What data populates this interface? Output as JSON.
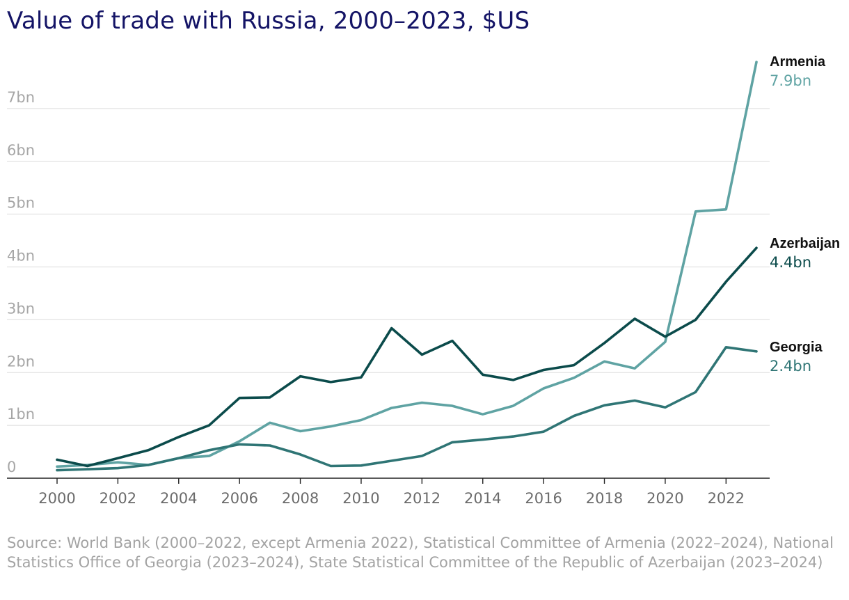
{
  "title": "Value of trade with Russia, 2000–2023, $US",
  "source": "Source: World Bank (2000–2022, except Armenia 2022), Statistical Committee of Armenia (2022–2024), National Statistics Office of Georgia (2023–2024), State Statistical Committee of the Republic of Azerbaijan (2023–2024)",
  "colors": {
    "armenia": "#5fa3a3",
    "azerbaijan": "#0b4b4b",
    "georgia": "#2f7575",
    "grid": "#e2e2e2",
    "tick": "#a6a6a6",
    "axis": "#222222",
    "label": "#111111"
  },
  "chart_data": {
    "type": "line",
    "title": "Value of trade with Russia, 2000–2023, $US",
    "xlabel": "",
    "ylabel": "",
    "x": [
      2000,
      2001,
      2002,
      2003,
      2004,
      2005,
      2006,
      2007,
      2008,
      2009,
      2010,
      2011,
      2012,
      2013,
      2014,
      2015,
      2016,
      2017,
      2018,
      2019,
      2020,
      2021,
      2022,
      2023
    ],
    "xlim": [
      1999.2,
      2023.5
    ],
    "ylim": [
      0,
      8
    ],
    "grid": true,
    "x_ticks": [
      2000,
      2002,
      2004,
      2006,
      2008,
      2010,
      2012,
      2014,
      2016,
      2018,
      2020,
      2022
    ],
    "x_tick_labels": [
      "2000",
      "2002",
      "2004",
      "2006",
      "2008",
      "2010",
      "2012",
      "2014",
      "2016",
      "2018",
      "2020",
      "2022"
    ],
    "y_ticks": [
      0,
      1,
      2,
      3,
      4,
      5,
      6,
      7
    ],
    "y_tick_labels": [
      "0",
      "1bn",
      "2bn",
      "3bn",
      "4bn",
      "5bn",
      "6bn",
      "7bn"
    ],
    "series": [
      {
        "key": "armenia",
        "name": "Armenia",
        "end_label": "7.9bn",
        "values": [
          0.22,
          0.25,
          0.3,
          0.25,
          0.38,
          0.42,
          0.7,
          1.05,
          0.89,
          0.98,
          1.1,
          1.33,
          1.43,
          1.37,
          1.21,
          1.37,
          1.7,
          1.9,
          2.21,
          2.08,
          2.58,
          5.05,
          5.09,
          7.88
        ]
      },
      {
        "key": "azerbaijan",
        "name": "Azerbaijan",
        "end_label": "4.4bn",
        "values": [
          0.35,
          0.23,
          0.38,
          0.53,
          0.78,
          1.0,
          1.52,
          1.53,
          1.93,
          1.82,
          1.91,
          2.84,
          2.34,
          2.6,
          1.96,
          1.86,
          2.05,
          2.14,
          2.56,
          3.02,
          2.68,
          3.0,
          3.72,
          4.36
        ]
      },
      {
        "key": "georgia",
        "name": "Georgia",
        "end_label": "2.4bn",
        "values": [
          0.15,
          0.17,
          0.19,
          0.25,
          0.38,
          0.53,
          0.64,
          0.62,
          0.45,
          0.23,
          0.24,
          0.33,
          0.42,
          0.68,
          0.73,
          0.79,
          0.88,
          1.18,
          1.38,
          1.47,
          1.34,
          1.63,
          2.48,
          2.4
        ]
      }
    ]
  }
}
